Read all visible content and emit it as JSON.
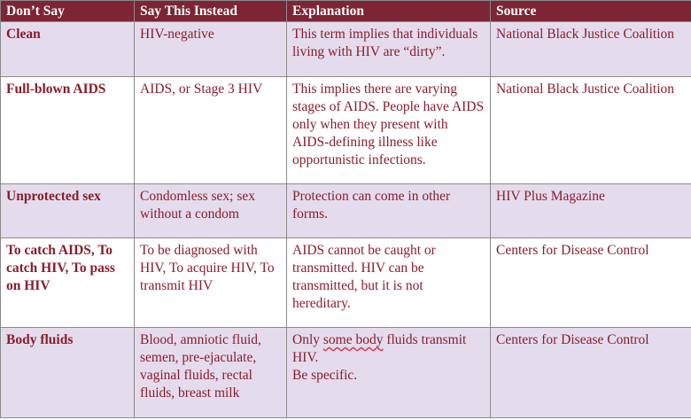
{
  "headers": [
    "Don’t Say",
    "Say This Instead",
    "Explanation",
    "Source"
  ],
  "rows": [
    {
      "dont_say": "Clean",
      "say_instead": "HIV-negative",
      "explanation": "This term implies that individuals living with HIV are “dirty”.",
      "source": "National Black Justice Coalition"
    },
    {
      "dont_say": "Full-blown AIDS",
      "say_instead": "AIDS, or Stage 3 HIV",
      "explanation": "This implies there are varying stages of AIDS. People have AIDS only when they present with AIDS-defining illness like opportunistic infections.",
      "source": "National Black Justice Coalition"
    },
    {
      "dont_say": "Unprotected sex",
      "say_instead": "Condomless sex; sex without a condom",
      "explanation": "Protection can come in other forms.",
      "source": "HIV Plus Magazine"
    },
    {
      "dont_say": "To catch AIDS, To catch HIV, To pass on HIV",
      "say_instead": "To be diagnosed with HIV, To acquire HIV, To transmit HIV",
      "explanation": "AIDS cannot be caught or transmitted. HIV can be transmitted, but it is not hereditary.",
      "source": "Centers for Disease Control"
    },
    {
      "dont_say": "Body fluids",
      "say_instead": "Blood, amniotic fluid, semen, pre-ejaculate, vaginal fluids, rectal fluids, breast milk",
      "explanation_pre": "Only ",
      "explanation_mark": "some body",
      "explanation_post": " fluids transmit HIV.",
      "explanation_line2": "Be specific.",
      "source": "Centers for Disease Control"
    }
  ]
}
